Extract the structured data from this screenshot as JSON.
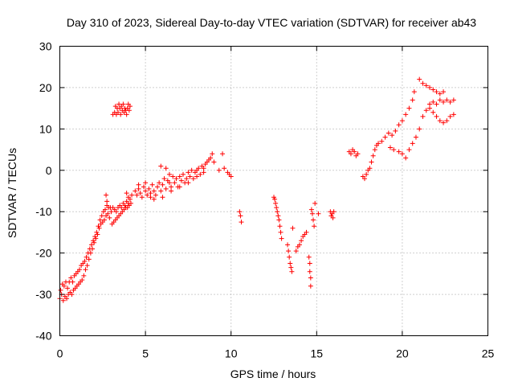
{
  "chart_data": {
    "type": "scatter",
    "title": "Day 310 of 2023, Sidereal Day-to-day VTEC variation (SDTVAR) for receiver ab43",
    "xlabel": "GPS time / hours",
    "ylabel": "SDTVAR / TECUs",
    "xlim": [
      0,
      25
    ],
    "ylim": [
      -40,
      30
    ],
    "xticks": [
      0,
      5,
      10,
      15,
      20,
      25
    ],
    "yticks": [
      -40,
      -30,
      -20,
      -10,
      0,
      10,
      20,
      30
    ],
    "grid": true,
    "marker": "+",
    "color": "#ff0000",
    "series": [
      {
        "points": [
          [
            0.0,
            -31
          ],
          [
            0.05,
            -29
          ],
          [
            0.1,
            -30
          ],
          [
            0.15,
            -27.5
          ],
          [
            0.2,
            -31.5
          ],
          [
            0.25,
            -28
          ],
          [
            0.3,
            -30.5
          ],
          [
            0.35,
            -27
          ],
          [
            0.4,
            -31
          ],
          [
            0.45,
            -28.5
          ],
          [
            0.5,
            -30
          ],
          [
            0.55,
            -27
          ],
          [
            0.6,
            -29.5
          ],
          [
            0.65,
            -26
          ],
          [
            0.7,
            -30
          ],
          [
            0.75,
            -27
          ],
          [
            0.8,
            -29
          ],
          [
            0.85,
            -25.5
          ],
          [
            0.9,
            -28.5
          ],
          [
            0.95,
            -25
          ],
          [
            1.0,
            -28
          ],
          [
            1.05,
            -24.5
          ],
          [
            1.1,
            -27.5
          ],
          [
            1.15,
            -24
          ],
          [
            1.2,
            -27
          ],
          [
            1.25,
            -23
          ],
          [
            1.3,
            -26.5
          ],
          [
            1.35,
            -22.5
          ],
          [
            1.4,
            -25.5
          ],
          [
            1.45,
            -22
          ],
          [
            1.5,
            -24
          ],
          [
            1.55,
            -21
          ],
          [
            1.6,
            -23
          ],
          [
            1.65,
            -20
          ],
          [
            1.7,
            -21.5
          ],
          [
            1.75,
            -19
          ],
          [
            1.8,
            -20
          ],
          [
            1.85,
            -18
          ],
          [
            1.9,
            -19
          ],
          [
            1.95,
            -17
          ],
          [
            2.0,
            -17.5
          ],
          [
            2.05,
            -16
          ],
          [
            2.1,
            -16.5
          ],
          [
            2.15,
            -15
          ],
          [
            2.2,
            -15.5
          ],
          [
            2.25,
            -13.5
          ],
          [
            2.3,
            -14
          ],
          [
            2.35,
            -12
          ],
          [
            2.4,
            -13
          ],
          [
            2.45,
            -11
          ],
          [
            2.5,
            -12.5
          ],
          [
            2.55,
            -10
          ],
          [
            2.6,
            -12
          ],
          [
            2.65,
            -9.5
          ],
          [
            2.7,
            -11
          ],
          [
            2.75,
            -8.5
          ],
          [
            2.8,
            -10.5
          ],
          [
            2.85,
            -9
          ],
          [
            2.9,
            -11.5
          ],
          [
            2.95,
            -9
          ],
          [
            3.0,
            -10
          ],
          [
            3.05,
            -13
          ],
          [
            3.1,
            -9
          ],
          [
            3.15,
            -12.5
          ],
          [
            3.2,
            -9.5
          ],
          [
            3.25,
            -12
          ],
          [
            3.3,
            -10
          ],
          [
            3.35,
            -11.5
          ],
          [
            3.4,
            -9
          ],
          [
            3.45,
            -11
          ],
          [
            3.5,
            -8.5
          ],
          [
            3.55,
            -10.5
          ],
          [
            3.6,
            -9
          ],
          [
            3.65,
            -10
          ],
          [
            3.7,
            -8
          ],
          [
            3.75,
            -9.5
          ],
          [
            3.8,
            -8.5
          ],
          [
            3.85,
            -9
          ],
          [
            3.9,
            -7.5
          ],
          [
            3.95,
            -9
          ],
          [
            4.0,
            -8
          ],
          [
            4.05,
            -8.5
          ],
          [
            4.1,
            -7
          ],
          [
            4.15,
            -8
          ],
          [
            4.2,
            -6
          ],
          [
            2.7,
            -6
          ],
          [
            2.75,
            -7.5
          ],
          [
            3.9,
            -5.5
          ],
          [
            4.0,
            -6.5
          ],
          [
            4.4,
            -5
          ],
          [
            4.5,
            -6
          ],
          [
            4.6,
            -4.5
          ],
          [
            4.7,
            -5.5
          ],
          [
            4.8,
            -6.5
          ],
          [
            4.9,
            -4
          ],
          [
            5.0,
            -5
          ],
          [
            5.1,
            -6
          ],
          [
            5.2,
            -4.5
          ],
          [
            5.3,
            -5.5
          ],
          [
            5.4,
            -3.5
          ],
          [
            5.5,
            -5
          ],
          [
            5.6,
            -6
          ],
          [
            5.7,
            -4
          ],
          [
            5.8,
            -3
          ],
          [
            5.9,
            -5
          ],
          [
            6.0,
            -3.5
          ],
          [
            6.1,
            -2
          ],
          [
            6.2,
            -4.5
          ],
          [
            6.3,
            -2.5
          ],
          [
            6.4,
            -3
          ],
          [
            6.5,
            -5
          ],
          [
            6.6,
            -1.5
          ],
          [
            6.7,
            -3
          ],
          [
            6.8,
            -2
          ],
          [
            6.9,
            -4
          ],
          [
            7.0,
            -1.5
          ],
          [
            7.1,
            -2.5
          ],
          [
            7.2,
            -1
          ],
          [
            7.3,
            -3
          ],
          [
            7.4,
            -2
          ],
          [
            7.5,
            -0.5
          ],
          [
            7.6,
            -1.5
          ],
          [
            7.7,
            0
          ],
          [
            7.8,
            -2
          ],
          [
            7.9,
            -0.5
          ],
          [
            8.0,
            -1.5
          ],
          [
            8.1,
            0.5
          ],
          [
            8.2,
            -1
          ],
          [
            8.3,
            1
          ],
          [
            8.4,
            0.5
          ],
          [
            8.5,
            1.5
          ],
          [
            8.6,
            2
          ],
          [
            8.7,
            2.5
          ],
          [
            8.8,
            3
          ],
          [
            8.9,
            4
          ],
          [
            9.0,
            2
          ],
          [
            5.0,
            -3
          ],
          [
            5.5,
            -7
          ],
          [
            6.0,
            -6.5
          ],
          [
            6.5,
            -4
          ],
          [
            7.0,
            -4
          ],
          [
            4.6,
            -3.5
          ],
          [
            5.3,
            -6.5
          ],
          [
            5.9,
            1
          ],
          [
            6.2,
            0.5
          ],
          [
            6.4,
            -1
          ],
          [
            7.5,
            -3
          ],
          [
            8.0,
            0
          ],
          [
            8.4,
            -0.5
          ],
          [
            9.3,
            0
          ],
          [
            9.5,
            4
          ],
          [
            9.6,
            0.5
          ],
          [
            9.8,
            -0.5
          ],
          [
            9.9,
            -1
          ],
          [
            10.0,
            -1.5
          ],
          [
            3.1,
            13.5
          ],
          [
            3.2,
            14
          ],
          [
            3.25,
            15.5
          ],
          [
            3.3,
            13.5
          ],
          [
            3.35,
            15
          ],
          [
            3.4,
            14
          ],
          [
            3.45,
            16
          ],
          [
            3.5,
            15
          ],
          [
            3.55,
            13.5
          ],
          [
            3.6,
            15.5
          ],
          [
            3.65,
            14.5
          ],
          [
            3.7,
            16
          ],
          [
            3.75,
            14
          ],
          [
            3.8,
            15
          ],
          [
            3.85,
            14.5
          ],
          [
            3.9,
            13.5
          ],
          [
            3.95,
            15
          ],
          [
            4.0,
            16
          ],
          [
            4.05,
            14.5
          ],
          [
            4.1,
            15.5
          ],
          [
            10.5,
            -10
          ],
          [
            10.55,
            -11
          ],
          [
            10.6,
            -12.5
          ],
          [
            12.5,
            -6.5
          ],
          [
            12.55,
            -7
          ],
          [
            12.6,
            -8
          ],
          [
            12.65,
            -9
          ],
          [
            12.7,
            -10
          ],
          [
            12.75,
            -11
          ],
          [
            12.8,
            -12
          ],
          [
            12.85,
            -13.5
          ],
          [
            12.9,
            -15
          ],
          [
            12.95,
            -16.5
          ],
          [
            13.3,
            -18
          ],
          [
            13.35,
            -19.5
          ],
          [
            13.4,
            -21
          ],
          [
            13.45,
            -22.5
          ],
          [
            13.5,
            -23.5
          ],
          [
            13.55,
            -24.5
          ],
          [
            13.6,
            -14
          ],
          [
            13.8,
            -19.5
          ],
          [
            13.9,
            -18.5
          ],
          [
            14.0,
            -18
          ],
          [
            14.1,
            -17
          ],
          [
            14.2,
            -16
          ],
          [
            14.3,
            -15.5
          ],
          [
            14.4,
            -15
          ],
          [
            14.55,
            -21
          ],
          [
            14.6,
            -22.5
          ],
          [
            14.6,
            -24.5
          ],
          [
            14.65,
            -26
          ],
          [
            14.65,
            -28
          ],
          [
            14.7,
            -9.5
          ],
          [
            14.75,
            -10.5
          ],
          [
            14.8,
            -12
          ],
          [
            14.85,
            -13.5
          ],
          [
            14.9,
            -8
          ],
          [
            15.1,
            -10.5
          ],
          [
            15.8,
            -10
          ],
          [
            15.85,
            -11
          ],
          [
            15.9,
            -10.5
          ],
          [
            15.95,
            -11.5
          ],
          [
            16.0,
            -10
          ],
          [
            16.9,
            4.5
          ],
          [
            17.0,
            4
          ],
          [
            17.1,
            5
          ],
          [
            17.2,
            4.5
          ],
          [
            17.3,
            3.5
          ],
          [
            17.4,
            4
          ],
          [
            17.7,
            -1.5
          ],
          [
            17.8,
            -2
          ],
          [
            17.9,
            -1
          ],
          [
            18.0,
            0
          ],
          [
            18.1,
            0.5
          ],
          [
            18.2,
            2
          ],
          [
            18.3,
            3.5
          ],
          [
            18.4,
            5
          ],
          [
            18.5,
            6
          ],
          [
            18.6,
            6.5
          ],
          [
            18.8,
            7
          ],
          [
            19.0,
            8
          ],
          [
            19.2,
            9
          ],
          [
            19.4,
            8.5
          ],
          [
            19.6,
            9.5
          ],
          [
            19.8,
            11
          ],
          [
            20.0,
            12
          ],
          [
            20.2,
            13.5
          ],
          [
            20.4,
            15
          ],
          [
            20.6,
            17
          ],
          [
            20.7,
            19
          ],
          [
            19.3,
            5.5
          ],
          [
            19.5,
            5
          ],
          [
            19.8,
            4.5
          ],
          [
            20.0,
            4
          ],
          [
            20.2,
            3
          ],
          [
            20.4,
            5
          ],
          [
            20.6,
            6.5
          ],
          [
            20.8,
            8
          ],
          [
            21.0,
            10
          ],
          [
            21.2,
            13
          ],
          [
            21.4,
            14.5
          ],
          [
            21.6,
            15
          ],
          [
            21.8,
            14
          ],
          [
            22.0,
            13
          ],
          [
            22.2,
            12
          ],
          [
            22.4,
            11.5
          ],
          [
            22.6,
            12
          ],
          [
            22.8,
            13
          ],
          [
            23.0,
            13.5
          ],
          [
            21.0,
            22
          ],
          [
            21.2,
            21
          ],
          [
            21.4,
            20.5
          ],
          [
            21.6,
            20
          ],
          [
            21.8,
            19.5
          ],
          [
            22.0,
            19
          ],
          [
            22.2,
            18.5
          ],
          [
            22.4,
            19
          ],
          [
            21.6,
            16
          ],
          [
            21.8,
            16.5
          ],
          [
            22.0,
            16
          ],
          [
            22.2,
            17
          ],
          [
            22.4,
            16.5
          ],
          [
            22.6,
            17
          ],
          [
            22.8,
            16.5
          ],
          [
            23.0,
            17
          ]
        ]
      }
    ]
  }
}
